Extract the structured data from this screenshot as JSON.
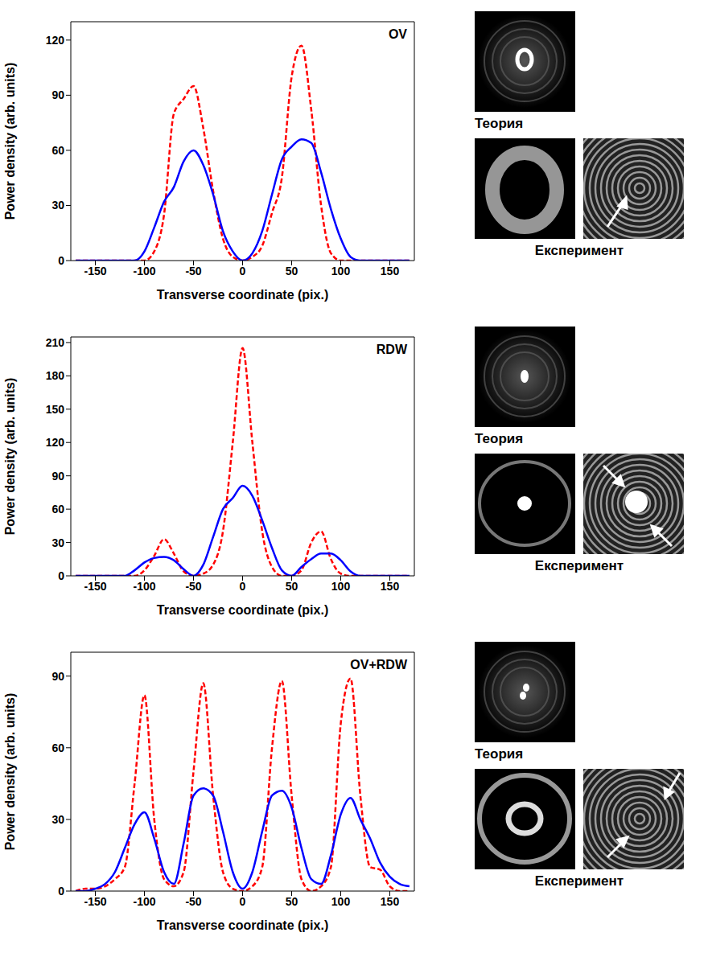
{
  "chart_data": [
    {
      "type": "line",
      "title": "OV",
      "x_label": "Transverse coordinate (pix.)",
      "y_label": "Power density (arb. units)",
      "x": [
        -170,
        -160,
        -150,
        -140,
        -130,
        -120,
        -110,
        -100,
        -90,
        -80,
        -70,
        -60,
        -50,
        -40,
        -30,
        -20,
        -10,
        0,
        10,
        20,
        30,
        40,
        50,
        60,
        70,
        80,
        90,
        100,
        110,
        120,
        130,
        140,
        150,
        160,
        170
      ],
      "xlim": [
        -175,
        175
      ],
      "xticks": [
        -150,
        -100,
        -50,
        0,
        50,
        100,
        150
      ],
      "ylim": [
        0,
        130
      ],
      "yticks": [
        0,
        30,
        60,
        90,
        120
      ],
      "series": [
        {
          "color": "#ff0000",
          "line_style": "dashed",
          "values": [
            0,
            0,
            0,
            0,
            0,
            0,
            0,
            0,
            5,
            25,
            80,
            88,
            95,
            72,
            38,
            12,
            2,
            0,
            2,
            8,
            26,
            45,
            100,
            117,
            82,
            30,
            4,
            0,
            0,
            0,
            0,
            0,
            0,
            0,
            0
          ]
        },
        {
          "color": "#0000ff",
          "line_style": "solid",
          "values": [
            0,
            0,
            0,
            0,
            0,
            0,
            0,
            5,
            18,
            32,
            40,
            54,
            60,
            52,
            36,
            16,
            5,
            0,
            4,
            16,
            36,
            55,
            62,
            66,
            64,
            48,
            28,
            12,
            2,
            0,
            0,
            0,
            0,
            0,
            0
          ]
        }
      ]
    },
    {
      "type": "line",
      "title": "RDW",
      "x_label": "Transverse coordinate (pix.)",
      "y_label": "Power density (arb. units)",
      "x": [
        -170,
        -160,
        -150,
        -140,
        -130,
        -120,
        -110,
        -100,
        -90,
        -80,
        -70,
        -60,
        -50,
        -40,
        -30,
        -20,
        -10,
        0,
        10,
        20,
        30,
        40,
        50,
        60,
        70,
        80,
        90,
        100,
        110,
        120,
        130,
        140,
        150,
        160,
        170
      ],
      "xlim": [
        -175,
        175
      ],
      "xticks": [
        -150,
        -100,
        -50,
        0,
        50,
        100,
        150
      ],
      "ylim": [
        0,
        215
      ],
      "yticks": [
        0,
        30,
        60,
        90,
        120,
        150,
        180,
        210
      ],
      "series": [
        {
          "color": "#ff0000",
          "line_style": "dashed",
          "values": [
            0,
            0,
            0,
            0,
            0,
            0,
            0,
            5,
            18,
            33,
            20,
            4,
            0,
            2,
            10,
            40,
            120,
            205,
            120,
            40,
            8,
            0,
            0,
            5,
            30,
            40,
            15,
            2,
            0,
            0,
            0,
            0,
            0,
            0,
            0
          ]
        },
        {
          "color": "#0000ff",
          "line_style": "solid",
          "values": [
            0,
            0,
            0,
            0,
            0,
            0,
            5,
            12,
            16,
            17,
            14,
            6,
            0,
            10,
            35,
            60,
            70,
            81,
            72,
            50,
            25,
            5,
            0,
            8,
            15,
            20,
            20,
            14,
            4,
            0,
            0,
            0,
            0,
            0,
            0
          ]
        }
      ]
    },
    {
      "type": "line",
      "title": "OV+RDW",
      "x_label": "Transverse coordinate (pix.)",
      "y_label": "Power density (arb. units)",
      "x": [
        -170,
        -160,
        -150,
        -140,
        -130,
        -120,
        -110,
        -100,
        -90,
        -80,
        -70,
        -60,
        -50,
        -40,
        -30,
        -20,
        -10,
        0,
        10,
        20,
        30,
        40,
        50,
        60,
        70,
        80,
        90,
        100,
        110,
        120,
        130,
        140,
        150,
        160,
        170
      ],
      "xlim": [
        -175,
        175
      ],
      "xticks": [
        -150,
        -100,
        -50,
        0,
        50,
        100,
        150
      ],
      "ylim": [
        0,
        100
      ],
      "yticks": [
        0,
        30,
        60,
        90
      ],
      "series": [
        {
          "color": "#ff0000",
          "line_style": "dashed",
          "values": [
            0,
            1,
            1,
            2,
            5,
            10,
            45,
            82,
            30,
            5,
            2,
            8,
            50,
            87,
            40,
            8,
            1,
            0,
            2,
            10,
            60,
            88,
            40,
            5,
            0,
            2,
            10,
            70,
            89,
            40,
            10,
            9,
            2,
            0,
            0
          ]
        },
        {
          "color": "#0000ff",
          "line_style": "solid",
          "values": [
            0,
            0,
            1,
            3,
            8,
            18,
            28,
            33,
            22,
            8,
            3,
            20,
            40,
            43,
            40,
            25,
            8,
            1,
            8,
            25,
            40,
            42,
            35,
            18,
            5,
            3,
            15,
            32,
            39,
            30,
            22,
            12,
            6,
            3,
            2
          ]
        }
      ]
    }
  ],
  "panels": [
    {
      "theory_label": "Теория",
      "experiment_label": "Експеримент"
    },
    {
      "theory_label": "Теория",
      "experiment_label": "Експеримент"
    },
    {
      "theory_label": "Теория",
      "experiment_label": "Експеримент"
    }
  ]
}
